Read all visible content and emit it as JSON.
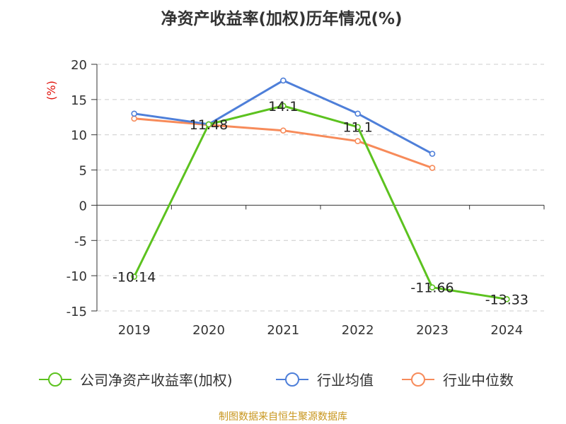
{
  "chart_data": {
    "type": "line",
    "title": "净资产收益率(加权)历年情况(%)",
    "ylabel": "(%)",
    "xlabel": "",
    "categories": [
      "2019",
      "2020",
      "2021",
      "2022",
      "2023",
      "2024"
    ],
    "ylim": [
      -15,
      20
    ],
    "yticks": [
      20,
      15,
      10,
      5,
      0,
      -5,
      -10,
      -15
    ],
    "grid": true,
    "legend_position": "bottom",
    "series": [
      {
        "name": "公司净资产收益率(加权)",
        "color": "#5cc21f",
        "values": [
          -10.14,
          11.48,
          14.1,
          11.1,
          -11.66,
          -13.33
        ],
        "labels": [
          "-10.14",
          "11.48",
          "14.1",
          "11.1",
          "-11.66",
          "-13.33"
        ]
      },
      {
        "name": "行业均值",
        "color": "#4e7fd9",
        "values": [
          13.0,
          11.5,
          17.7,
          13.0,
          7.3,
          null
        ]
      },
      {
        "name": "行业中位数",
        "color": "#f78b5a",
        "values": [
          12.3,
          11.4,
          10.6,
          9.1,
          5.3,
          null
        ]
      }
    ]
  },
  "source": "制图数据来自恒生聚源数据库",
  "colors": {
    "title": "#333333",
    "axis": "#333333",
    "grid": "#cccccc",
    "ylabel": "#e0120b",
    "source": "#c8961e"
  }
}
